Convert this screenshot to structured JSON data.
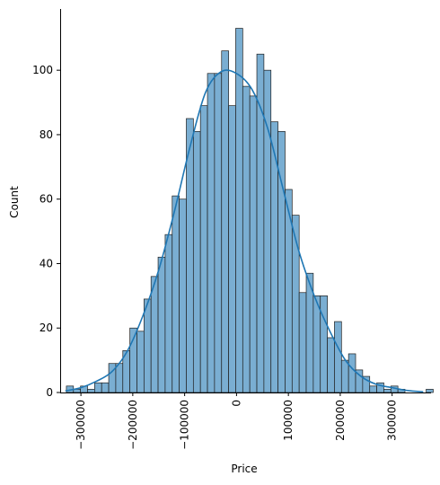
{
  "chart_data": {
    "type": "bar",
    "subtype": "histogram-with-kde",
    "title": "",
    "xlabel": "Price",
    "ylabel": "Count",
    "xlim": [
      -340000,
      375000
    ],
    "ylim": [
      0,
      119
    ],
    "x_ticks": [
      -300000,
      -200000,
      -100000,
      0,
      100000,
      200000,
      300000
    ],
    "x_tick_labels": [
      "−300000",
      "−200000",
      "−100000",
      "0",
      "100000",
      "200000",
      "300000"
    ],
    "y_ticks": [
      0,
      20,
      40,
      60,
      80,
      100
    ],
    "y_tick_labels": [
      "0",
      "20",
      "40",
      "60",
      "80",
      "100"
    ],
    "grid": false,
    "bin_start": -328000,
    "bin_width": 13600,
    "counts": [
      2,
      1,
      2,
      1,
      3,
      3,
      9,
      9,
      13,
      20,
      19,
      29,
      36,
      42,
      49,
      61,
      60,
      85,
      81,
      89,
      99,
      99,
      106,
      89,
      113,
      95,
      92,
      105,
      100,
      84,
      81,
      63,
      55,
      31,
      37,
      30,
      30,
      17,
      22,
      10,
      12,
      7,
      5,
      2,
      3,
      1,
      2,
      1,
      0,
      0,
      0,
      1
    ],
    "kde": {
      "x": [
        -330000,
        -300000,
        -270000,
        -240000,
        -210000,
        -180000,
        -150000,
        -120000,
        -90000,
        -60000,
        -30000,
        0,
        30000,
        60000,
        90000,
        120000,
        150000,
        180000,
        210000,
        240000,
        270000,
        300000,
        330000,
        360000
      ],
      "y": [
        0.5,
        1.5,
        3.5,
        6.5,
        13,
        24,
        38,
        56,
        76,
        93,
        99.5,
        99,
        94,
        82,
        63,
        44,
        30,
        19,
        10,
        5,
        2.5,
        1.5,
        0.6,
        0.2
      ]
    },
    "colors": {
      "bar_fill": "#7aaed2",
      "bar_edge": "#1f1f1f",
      "kde_line": "#1f77b4",
      "axis": "#000000"
    }
  }
}
